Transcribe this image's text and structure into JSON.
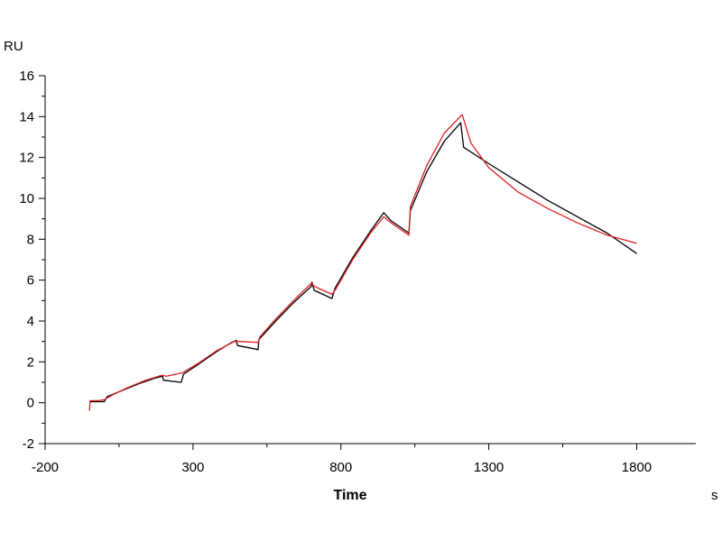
{
  "chart_data": {
    "type": "line",
    "xlabel": "Time",
    "x_unit": "s",
    "y_unit": "RU",
    "xlim": [
      -200,
      2000
    ],
    "ylim": [
      -2,
      16
    ],
    "x_ticks": [
      -200,
      300,
      800,
      1300,
      1800
    ],
    "y_ticks": [
      -2,
      0,
      2,
      4,
      6,
      8,
      10,
      12,
      14,
      16
    ],
    "grid": false,
    "legend": "none",
    "series": [
      {
        "color": "#000000",
        "points": [
          [
            -50,
            0.0
          ],
          [
            -45,
            0.05
          ],
          [
            0,
            0.05
          ],
          [
            10,
            0.3
          ],
          [
            60,
            0.6
          ],
          [
            120,
            0.95
          ],
          [
            170,
            1.2
          ],
          [
            197,
            1.3
          ],
          [
            200,
            1.1
          ],
          [
            260,
            1.0
          ],
          [
            268,
            1.4
          ],
          [
            320,
            1.9
          ],
          [
            380,
            2.5
          ],
          [
            430,
            2.95
          ],
          [
            447,
            3.05
          ],
          [
            450,
            2.8
          ],
          [
            520,
            2.6
          ],
          [
            523,
            3.1
          ],
          [
            580,
            4.0
          ],
          [
            640,
            4.9
          ],
          [
            700,
            5.7
          ],
          [
            702,
            5.9
          ],
          [
            710,
            5.5
          ],
          [
            770,
            5.1
          ],
          [
            780,
            5.6
          ],
          [
            840,
            7.1
          ],
          [
            900,
            8.4
          ],
          [
            945,
            9.3
          ],
          [
            970,
            8.9
          ],
          [
            1030,
            8.3
          ],
          [
            1035,
            9.4
          ],
          [
            1090,
            11.3
          ],
          [
            1150,
            12.8
          ],
          [
            1205,
            13.7
          ],
          [
            1215,
            12.5
          ],
          [
            1300,
            11.7
          ],
          [
            1400,
            10.8
          ],
          [
            1500,
            9.9
          ],
          [
            1600,
            9.1
          ],
          [
            1700,
            8.3
          ],
          [
            1800,
            7.3
          ]
        ]
      },
      {
        "color": "#e02020",
        "points": [
          [
            -50,
            -0.4
          ],
          [
            -48,
            0.1
          ],
          [
            -20,
            0.1
          ],
          [
            0,
            0.15
          ],
          [
            30,
            0.4
          ],
          [
            80,
            0.75
          ],
          [
            140,
            1.1
          ],
          [
            195,
            1.35
          ],
          [
            210,
            1.3
          ],
          [
            260,
            1.45
          ],
          [
            268,
            1.5
          ],
          [
            320,
            1.95
          ],
          [
            380,
            2.55
          ],
          [
            440,
            3.0
          ],
          [
            460,
            3.0
          ],
          [
            520,
            2.95
          ],
          [
            525,
            3.2
          ],
          [
            580,
            4.1
          ],
          [
            640,
            5.0
          ],
          [
            700,
            5.85
          ],
          [
            710,
            5.7
          ],
          [
            770,
            5.3
          ],
          [
            780,
            5.5
          ],
          [
            840,
            7.0
          ],
          [
            900,
            8.3
          ],
          [
            945,
            9.1
          ],
          [
            970,
            8.8
          ],
          [
            1030,
            8.2
          ],
          [
            1035,
            9.6
          ],
          [
            1090,
            11.6
          ],
          [
            1150,
            13.2
          ],
          [
            1210,
            14.1
          ],
          [
            1240,
            12.7
          ],
          [
            1300,
            11.5
          ],
          [
            1400,
            10.3
          ],
          [
            1500,
            9.5
          ],
          [
            1600,
            8.8
          ],
          [
            1700,
            8.2
          ],
          [
            1800,
            7.8
          ]
        ]
      }
    ]
  }
}
